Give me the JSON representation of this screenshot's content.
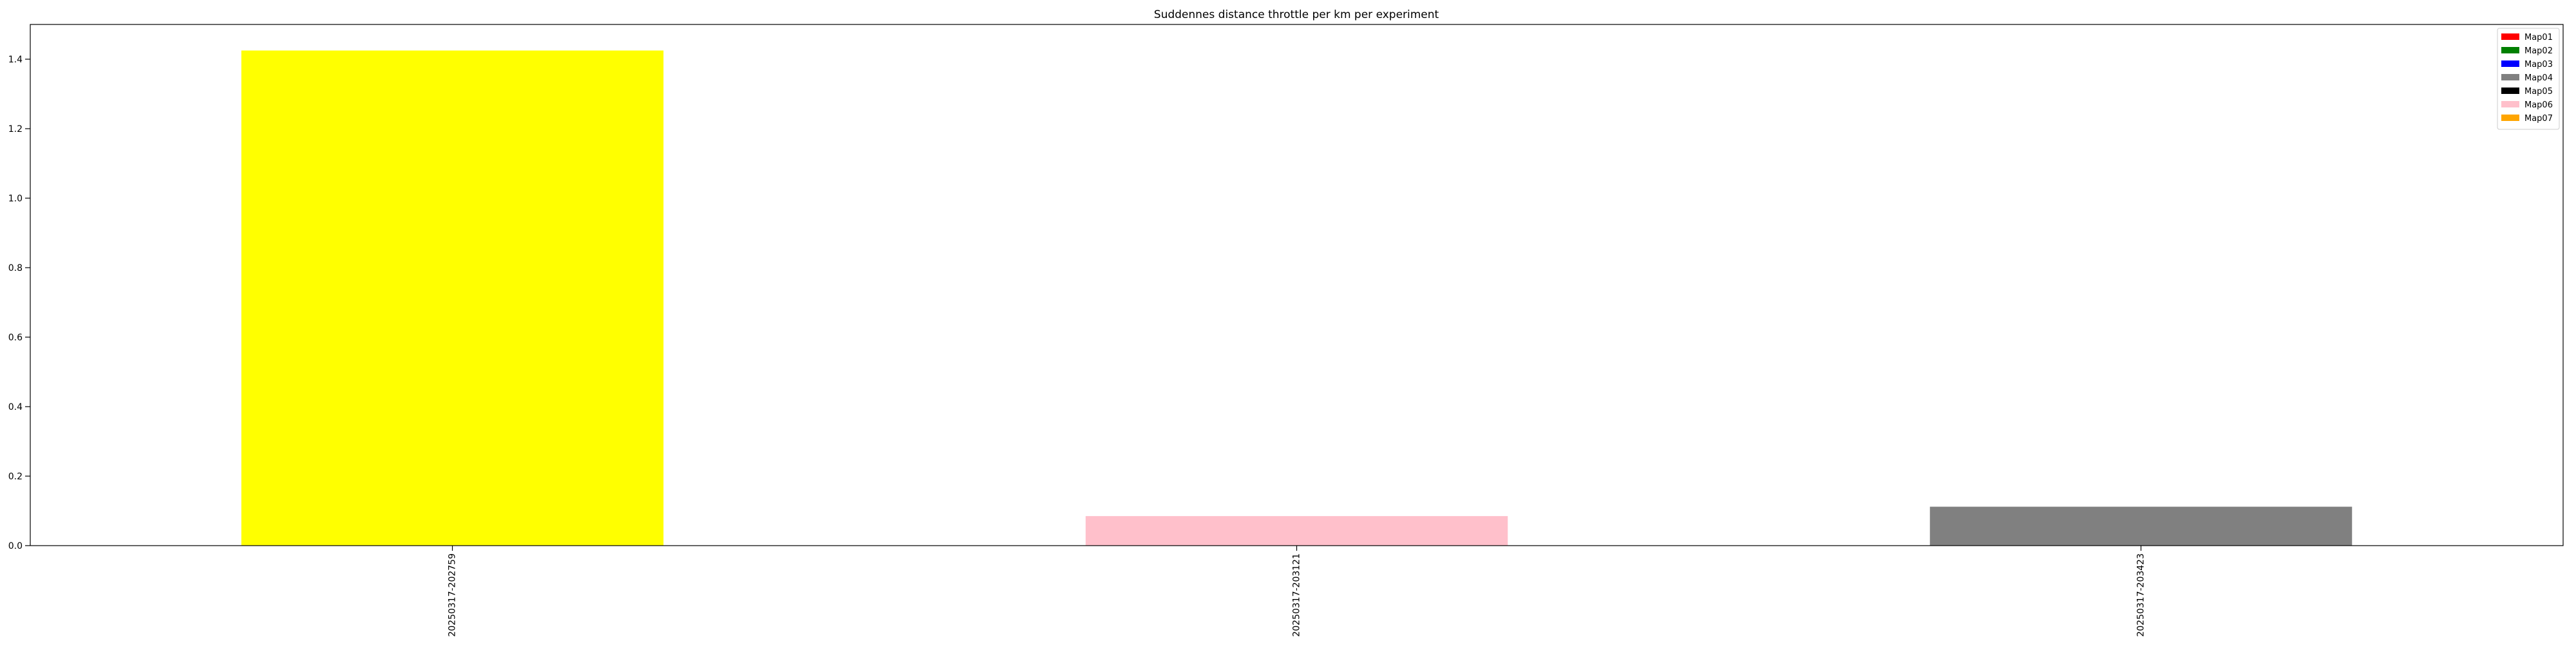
{
  "chart_data": {
    "type": "bar",
    "title": "Suddennes distance throttle per km per experiment",
    "xlabel": "",
    "ylabel": "",
    "categories": [
      "20250317-202759",
      "20250317-203121",
      "20250317-203423"
    ],
    "values": [
      1.425,
      0.085,
      0.112
    ],
    "bar_colors": [
      "#ffff00",
      "#ffc0cb",
      "#808080"
    ],
    "ylim": [
      0,
      1.5
    ],
    "yticks": [
      0.0,
      0.2,
      0.4,
      0.6,
      0.8,
      1.0,
      1.2,
      1.4
    ],
    "grid": false,
    "legend_placement": "top-right",
    "legend": [
      {
        "name": "Map01",
        "color": "#ff0000"
      },
      {
        "name": "Map02",
        "color": "#008000"
      },
      {
        "name": "Map03",
        "color": "#0000ff"
      },
      {
        "name": "Map04",
        "color": "#808080"
      },
      {
        "name": "Map05",
        "color": "#000000"
      },
      {
        "name": "Map06",
        "color": "#ffc0cb"
      },
      {
        "name": "Map07",
        "color": "#ffa500"
      }
    ]
  }
}
